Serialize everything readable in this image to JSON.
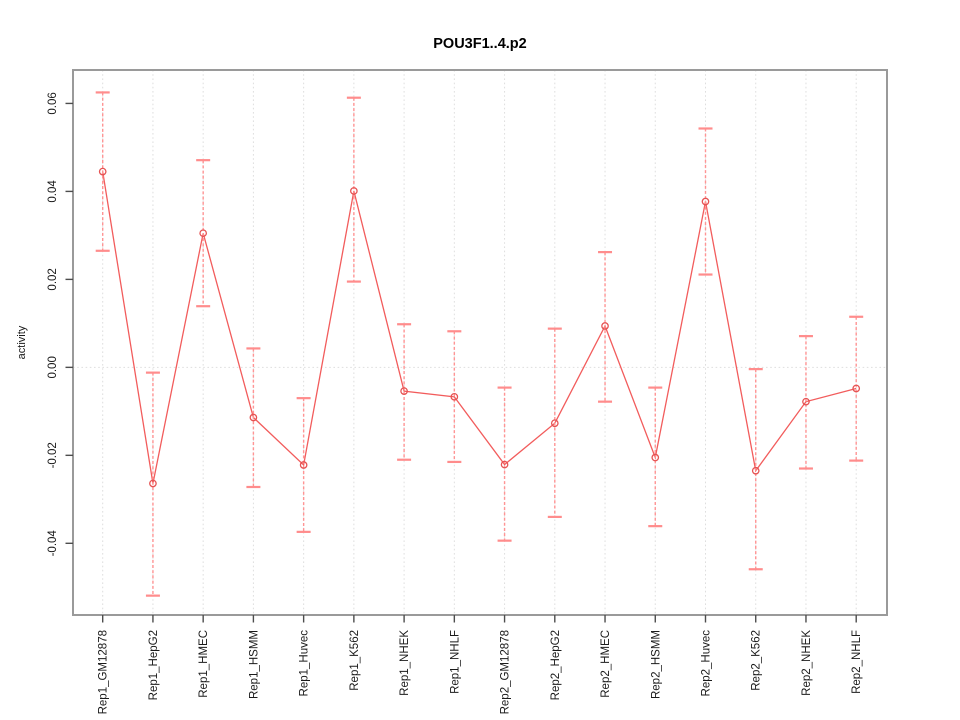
{
  "page": {
    "background": "#ffffff"
  },
  "chart_data": {
    "type": "line",
    "title": "POU3F1..4.p2",
    "xlabel": "",
    "ylabel": "activity",
    "legend_position": "none",
    "categories": [
      "Rep1_GM12878",
      "Rep1_HepG2",
      "Rep1_HMEC",
      "Rep1_HSMM",
      "Rep1_Huvec",
      "Rep1_K562",
      "Rep1_NHEK",
      "Rep1_NHLF",
      "Rep2_GM12878",
      "Rep2_HepG2",
      "Rep2_HMEC",
      "Rep2_HSMM",
      "Rep2_Huvec",
      "Rep2_K562",
      "Rep2_NHEK",
      "Rep2_NHLF"
    ],
    "series": [
      {
        "name": "activity",
        "values": [
          0.0445,
          -0.0264,
          0.0305,
          -0.0114,
          -0.0222,
          0.0401,
          -0.0054,
          -0.0067,
          -0.0221,
          -0.0127,
          0.0094,
          -0.0205,
          0.0377,
          -0.0235,
          -0.0078,
          -0.0048
        ],
        "error_low": [
          0.0265,
          -0.0519,
          0.0139,
          -0.0272,
          -0.0374,
          0.0195,
          -0.021,
          -0.0215,
          -0.0394,
          -0.034,
          -0.0078,
          -0.0361,
          0.0211,
          -0.0459,
          -0.023,
          -0.0212
        ],
        "error_high": [
          0.0625,
          -0.0012,
          0.0471,
          0.0043,
          -0.007,
          0.0613,
          0.0098,
          0.0082,
          -0.0046,
          0.0088,
          0.0262,
          -0.0046,
          0.0543,
          -0.0004,
          0.0071,
          0.0115
        ]
      }
    ],
    "ytick_values": [
      0.06,
      0.04,
      0.02,
      0.0,
      -0.02,
      -0.04
    ],
    "ytick_labels": [
      "0.06",
      "0.04",
      "0.02",
      "0.00",
      "-0.02",
      "-0.04"
    ],
    "ylim": [
      -0.0563,
      0.0676
    ],
    "grid": {
      "vertical_gridlines": "dotted, one per category",
      "horizontal_gridlines": "dotted zero line only",
      "zero_line": true
    },
    "colors": {
      "line": "#f25c5c",
      "error_bar": "#ff9494",
      "error_cap": "#ff8c8c",
      "marker_stroke": "#e65353",
      "grid": "#dedede",
      "frame": "#9a9a9a",
      "tick": "#4d4d4d",
      "tick_text": "#1a1a1a"
    }
  }
}
